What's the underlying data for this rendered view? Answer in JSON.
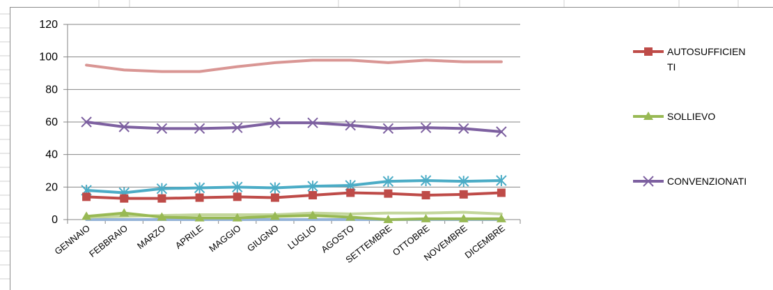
{
  "chart_data": {
    "type": "line",
    "categories": [
      "GENNAIO",
      "FEBBRAIO",
      "MARZO",
      "APRILE",
      "MAGGIO",
      "GIUGNO",
      "LUGLIO",
      "AGOSTO",
      "SETTEMBRE",
      "OTTOBRE",
      "NOVEMBRE",
      "DICEMBRE"
    ],
    "ylim": [
      0,
      120
    ],
    "yticks": [
      0,
      20,
      40,
      60,
      80,
      100,
      120
    ],
    "grid": true,
    "legend_position": "right",
    "series": [
      {
        "name": "AUTOSUFFICIENTI",
        "color": "#BE4B48",
        "marker": "square",
        "values": [
          14,
          13,
          13,
          13.5,
          14,
          13.5,
          15,
          16.5,
          16,
          15,
          15.5,
          16.5
        ]
      },
      {
        "name": "SOLLIEVO",
        "color": "#98B954",
        "marker": "triangle",
        "values": [
          2,
          4,
          1.5,
          1,
          1,
          2,
          2.5,
          1.5,
          0,
          0.5,
          0.5,
          0.5
        ]
      },
      {
        "name": "CONVENZIONATI",
        "color": "#7D60A0",
        "marker": "x",
        "values": [
          60,
          57,
          56,
          56,
          56.5,
          59.5,
          59.5,
          58,
          56,
          56.5,
          56,
          54
        ]
      },
      {
        "color": "#4BACC6",
        "marker": "star",
        "values": [
          18,
          16.5,
          19,
          19.5,
          20,
          19.5,
          20.5,
          21,
          23.5,
          24,
          23.5,
          24
        ]
      },
      {
        "color": "#D99694",
        "marker": "none",
        "values": [
          95,
          92,
          91,
          91,
          94,
          96.5,
          98,
          98,
          96.5,
          98,
          97,
          97
        ]
      },
      {
        "color": "#C3D69B",
        "marker": "none",
        "values": [
          1.5,
          2,
          2.5,
          3,
          3,
          3,
          4,
          3.5,
          4,
          4,
          4.5,
          3.5
        ]
      },
      {
        "color": "#95B3D7",
        "marker": "none",
        "values": [
          0,
          0,
          0,
          0,
          0,
          0,
          0,
          0,
          0,
          0,
          0,
          0
        ]
      }
    ]
  }
}
